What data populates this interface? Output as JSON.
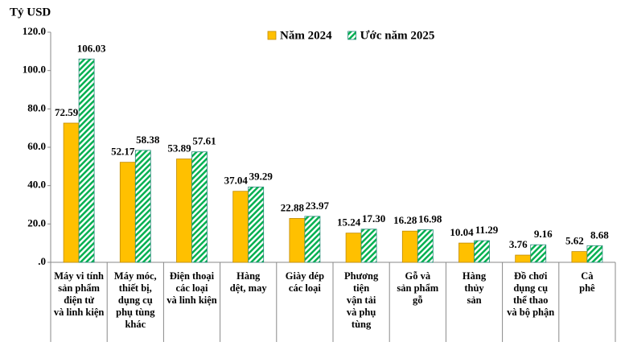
{
  "chart_data": {
    "type": "bar",
    "y_label": "Tỷ USD",
    "categories": [
      "Máy vi tính\nsản phẩm\nđiện tử\nvà linh kiện",
      "Máy móc,\nthiết bị,\ndụng cụ\nphụ tùng\nkhác",
      "Điện thoại\ncác loại\nvà linh kiện",
      "Hàng\ndệt, may",
      "Giày dép\ncác loại",
      "Phương\ntiện\nvận tải\nvà phụ\ntùng",
      "Gỗ và\nsản phẩm\ngỗ",
      "Hàng\nthủy\nsản",
      "Đồ chơi\ndụng cụ\nthể thao\nvà bộ phận",
      "Cà\nphê"
    ],
    "series": [
      {
        "name": "Năm 2024",
        "color": "#FFC000",
        "values": [
          72.59,
          52.17,
          53.89,
          37.04,
          22.88,
          15.24,
          16.28,
          10.04,
          3.76,
          5.62
        ],
        "value_labels": [
          "72.59",
          "52.17",
          "53.89",
          "37.04",
          "22.88",
          "15.24",
          "16.28",
          "10.04",
          "3.76",
          "5.62"
        ]
      },
      {
        "name": "Ước năm 2025",
        "color": "#00B050",
        "hatched": true,
        "values": [
          106.03,
          58.38,
          57.61,
          39.29,
          23.97,
          17.3,
          16.98,
          11.29,
          9.16,
          8.68
        ],
        "value_labels": [
          "106.03",
          "58.38",
          "57.61",
          "39.29",
          "23.97",
          "17.30",
          "16.98",
          "11.29",
          "9.16",
          "8.68"
        ]
      }
    ],
    "ylim": [
      0,
      120
    ],
    "yticks": [
      {
        "value": 0,
        "label": ".0"
      },
      {
        "value": 20,
        "label": "20.0"
      },
      {
        "value": 40,
        "label": "40.0"
      },
      {
        "value": 60,
        "label": "60.0"
      },
      {
        "value": 80,
        "label": "80.0"
      },
      {
        "value": 100,
        "label": "100.0"
      },
      {
        "value": 120,
        "label": "120.0"
      }
    ],
    "grid": false,
    "legend": "top"
  }
}
